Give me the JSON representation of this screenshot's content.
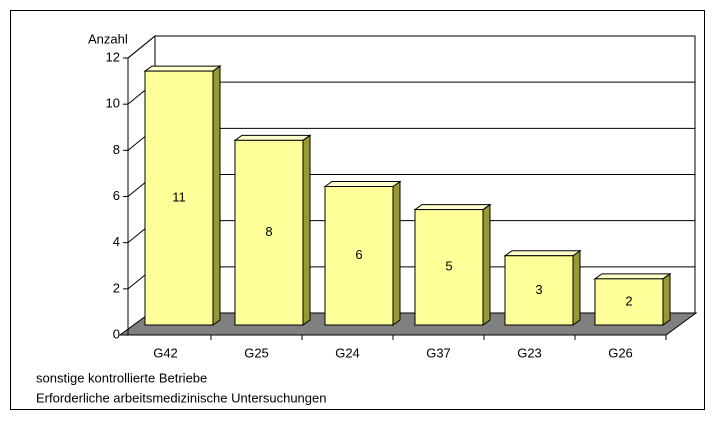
{
  "chart_data": {
    "type": "bar3d",
    "y_label": "Anzahl",
    "annotations": [
      "sonstige kontrollierte Betriebe",
      "Erforderliche arbeitsmedizinische Untersuchungen"
    ],
    "categories": [
      "G42",
      "G25",
      "G24",
      "G37",
      "G23",
      "G26"
    ],
    "values": [
      11,
      8,
      6,
      5,
      3,
      2
    ],
    "color": "#ffff99",
    "floor_color": "#808080",
    "ylim": [
      0,
      12
    ],
    "yticks": [
      0,
      2,
      4,
      6,
      8,
      10,
      12
    ],
    "grid": true
  }
}
